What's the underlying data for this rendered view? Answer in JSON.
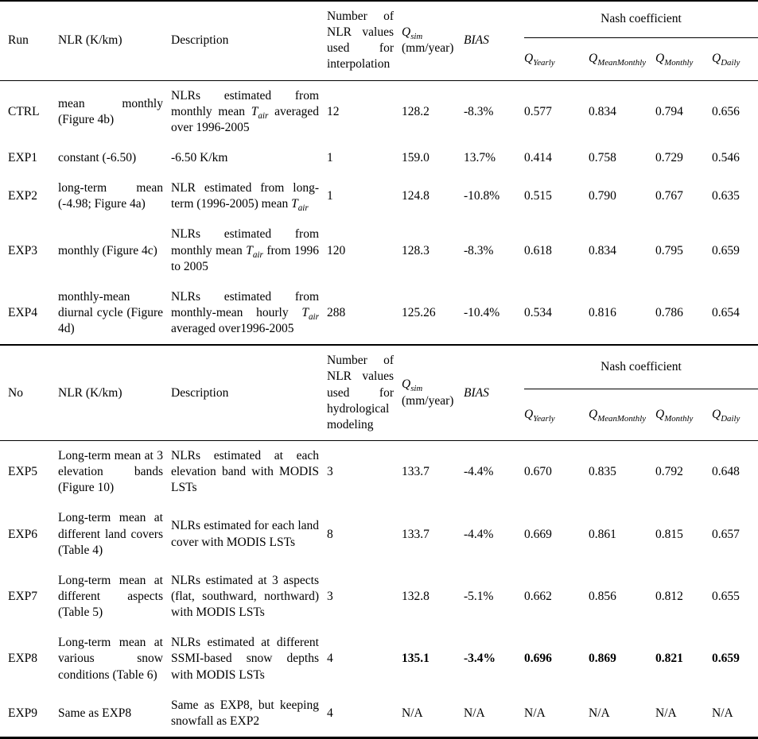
{
  "table1": {
    "header": {
      "run": "Run",
      "nlr": "NLR (K/km)",
      "description": "Description",
      "count": "Number of NLR values used for interpolation",
      "qsim_symbol": "Q",
      "qsim_sub": "sim",
      "qsim_unit": "(mm/year)",
      "bias": "BIAS",
      "nash": "Nash coefficient",
      "nash_columns": [
        {
          "symbol": "Q",
          "sub": "Yearly"
        },
        {
          "symbol": "Q",
          "sub": "MeanMonthly"
        },
        {
          "symbol": "Q",
          "sub": "Monthly"
        },
        {
          "symbol": "Q",
          "sub": "Daily"
        }
      ]
    },
    "rows": [
      {
        "run": "CTRL",
        "nlr": "mean monthly (Figure 4b)",
        "description": "NLRs estimated from monthly mean T_air averaged over 1996-2005",
        "count": "12",
        "qsim": "128.2",
        "bias": "-8.3%",
        "q_yearly": "0.577",
        "q_meanmonthly": "0.834",
        "q_monthly": "0.794",
        "q_daily": "0.656"
      },
      {
        "run": "EXP1",
        "nlr": "constant (-6.50)",
        "description": "-6.50 K/km",
        "count": "1",
        "qsim": "159.0",
        "bias": "13.7%",
        "q_yearly": "0.414",
        "q_meanmonthly": "0.758",
        "q_monthly": "0.729",
        "q_daily": "0.546"
      },
      {
        "run": "EXP2",
        "nlr": "long-term mean (-4.98; Figure 4a)",
        "description": "NLR estimated from long-term (1996-2005) mean T_air",
        "count": "1",
        "qsim": "124.8",
        "bias": "-10.8%",
        "q_yearly": "0.515",
        "q_meanmonthly": "0.790",
        "q_monthly": "0.767",
        "q_daily": "0.635"
      },
      {
        "run": "EXP3",
        "nlr": "monthly (Figure 4c)",
        "description": "NLRs estimated from monthly mean T_air from 1996 to 2005",
        "count": "120",
        "qsim": "128.3",
        "bias": "-8.3%",
        "q_yearly": "0.618",
        "q_meanmonthly": "0.834",
        "q_monthly": "0.795",
        "q_daily": "0.659"
      },
      {
        "run": "EXP4",
        "nlr": "monthly-mean diurnal cycle (Figure 4d)",
        "description": "NLRs estimated from monthly-mean hourly T_air averaged over1996-2005",
        "count": "288",
        "qsim": "125.26",
        "bias": "-10.4%",
        "q_yearly": "0.534",
        "q_meanmonthly": "0.816",
        "q_monthly": "0.786",
        "q_daily": "0.654"
      }
    ]
  },
  "table2": {
    "header": {
      "run": "No",
      "nlr": "NLR (K/km)",
      "description": "Description",
      "count": "Number of NLR values used for hydrological modeling",
      "qsim_symbol": "Q",
      "qsim_sub": "sim",
      "qsim_unit": "(mm/year)",
      "bias": "BIAS",
      "nash": "Nash coefficient",
      "nash_columns": [
        {
          "symbol": "Q",
          "sub": "Yearly"
        },
        {
          "symbol": "Q",
          "sub": "MeanMonthly"
        },
        {
          "symbol": "Q",
          "sub": "Monthly"
        },
        {
          "symbol": "Q",
          "sub": "Daily"
        }
      ]
    },
    "rows": [
      {
        "run": "EXP5",
        "nlr": "Long-term mean at 3 elevation bands (Figure 10)",
        "description": "NLRs estimated at each elevation band with MODIS LSTs",
        "count": "3",
        "qsim": "133.7",
        "bias": "-4.4%",
        "q_yearly": "0.670",
        "q_meanmonthly": "0.835",
        "q_monthly": "0.792",
        "q_daily": "0.648"
      },
      {
        "run": "EXP6",
        "nlr": "Long-term mean at different land covers (Table 4)",
        "description": "NLRs estimated for each land cover with MODIS LSTs",
        "count": "8",
        "qsim": "133.7",
        "bias": "-4.4%",
        "q_yearly": "0.669",
        "q_meanmonthly": "0.861",
        "q_monthly": "0.815",
        "q_daily": "0.657"
      },
      {
        "run": "EXP7",
        "nlr": "Long-term mean at different aspects (Table 5)",
        "description": "NLRs estimated at 3 aspects (flat, southward, northward) with MODIS LSTs",
        "count": "3",
        "qsim": "132.8",
        "bias": "-5.1%",
        "q_yearly": "0.662",
        "q_meanmonthly": "0.856",
        "q_monthly": "0.812",
        "q_daily": "0.655"
      },
      {
        "run": "EXP8",
        "nlr": "Long-term mean at various snow conditions (Table 6)",
        "description": "NLRs estimated at different SSMI-based snow depths with MODIS LSTs",
        "count": "4",
        "qsim": "135.1",
        "bias": "-3.4%",
        "q_yearly": "0.696",
        "q_meanmonthly": "0.869",
        "q_monthly": "0.821",
        "q_daily": "0.659"
      },
      {
        "run": "EXP9",
        "nlr": "Same as EXP8",
        "description": "Same as EXP8, but keeping snowfall as EXP2",
        "count": "4",
        "qsim": "N/A",
        "bias": "N/A",
        "q_yearly": "N/A",
        "q_meanmonthly": "N/A",
        "q_monthly": "N/A",
        "q_daily": "N/A"
      }
    ]
  }
}
